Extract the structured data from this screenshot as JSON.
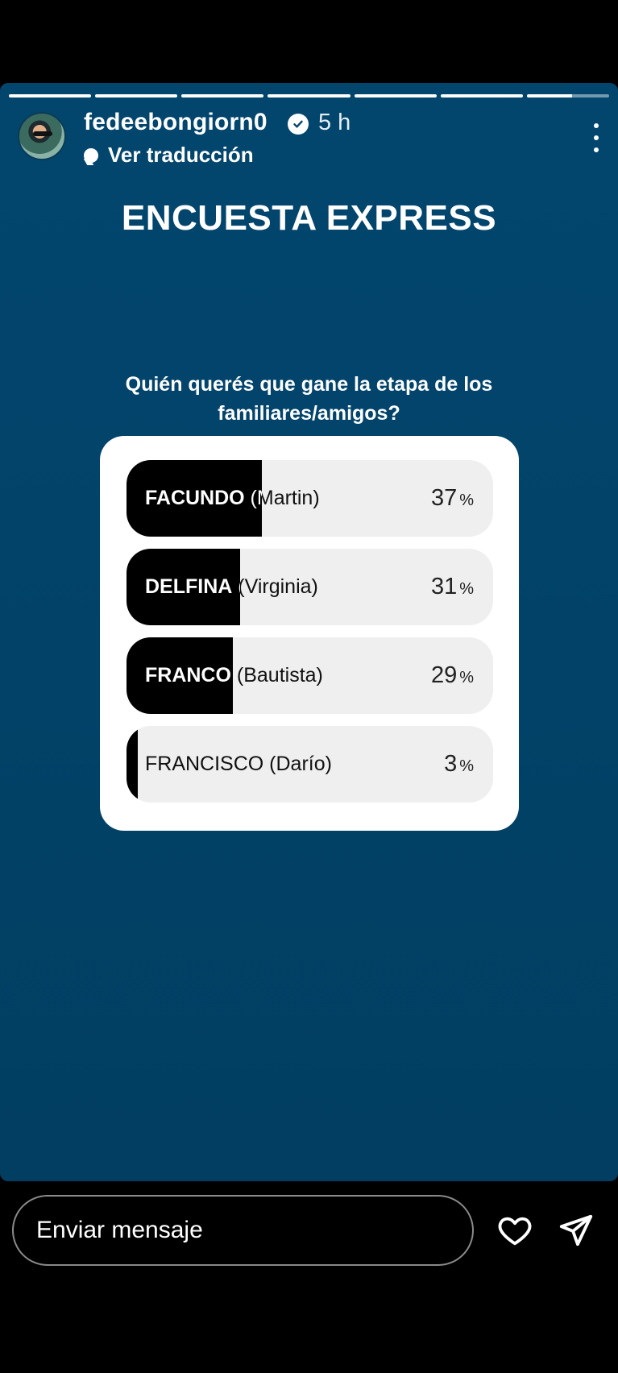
{
  "story": {
    "progress_segments": [
      1,
      1,
      1,
      1,
      1,
      1,
      0.55
    ],
    "background_color": "#02466e"
  },
  "header": {
    "username": "fedeebongiorn0",
    "time": "5 h",
    "translate_label": "Ver traducción",
    "icons": [
      "avatar",
      "verified-badge-icon",
      "more-options-icon",
      "translate-bubble-icon"
    ]
  },
  "content": {
    "title": "ENCUESTA EXPRESS",
    "question": "Quién querés que gane la etapa de los familiares/amigos?"
  },
  "poll": {
    "options": [
      {
        "lead": "FACUNDO",
        "detail": " (Martin)",
        "percent": 37,
        "percent_label": "37"
      },
      {
        "lead": "DELFINA",
        "detail": " (Virginia)",
        "percent": 31,
        "percent_label": "31"
      },
      {
        "lead": "FRANCO",
        "detail": " (Bautista)",
        "percent": 29,
        "percent_label": "29"
      },
      {
        "lead": "",
        "detail": "FRANCISCO (Darío)",
        "percent": 3,
        "percent_label": "3"
      }
    ],
    "percent_sign": "%",
    "bar_color": "#000000",
    "track_color": "#efefef"
  },
  "footer": {
    "message_placeholder": "Enviar mensaje",
    "icons": [
      "heart-icon",
      "send-icon"
    ]
  }
}
